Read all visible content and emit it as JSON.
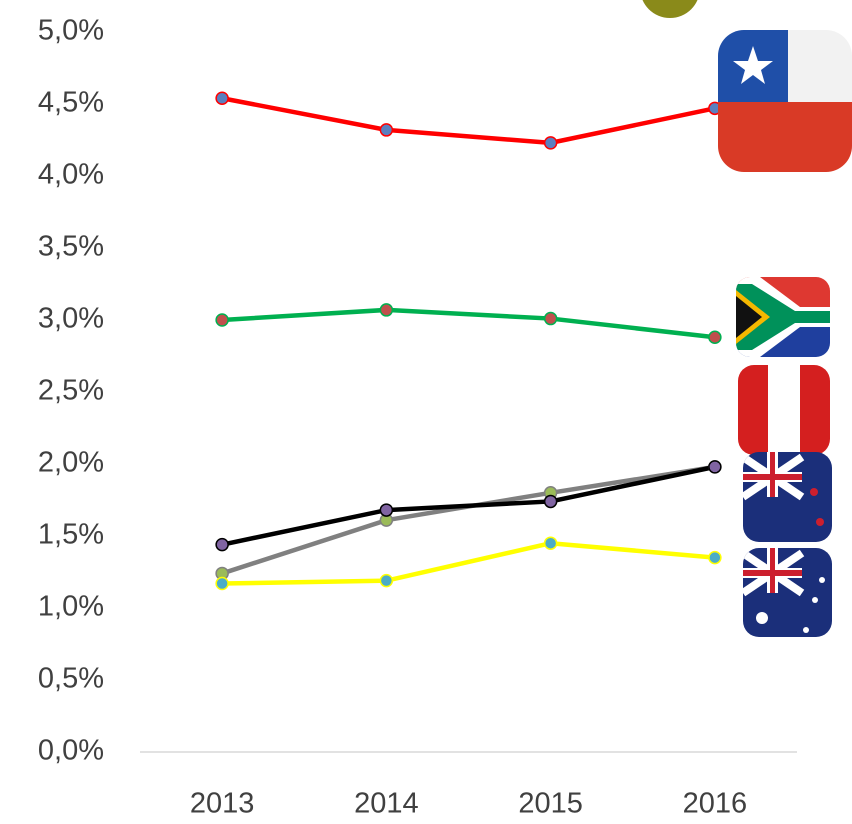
{
  "chart_data": {
    "type": "line",
    "categories": [
      "2013",
      "2014",
      "2015",
      "2016"
    ],
    "series": [
      {
        "color": "#ff0000",
        "marker_color": "#5b7fbf",
        "values": [
          4.54,
          4.32,
          4.23,
          4.47
        ]
      },
      {
        "color": "#00b050",
        "marker_color": "#c0504d",
        "values": [
          3.0,
          3.07,
          3.01,
          2.88
        ]
      },
      {
        "color": "#808080",
        "marker_color": "#9bbb59",
        "values": [
          1.24,
          1.61,
          1.8,
          1.98
        ]
      },
      {
        "color": "#000000",
        "marker_color": "#8064a2",
        "values": [
          1.44,
          1.68,
          1.74,
          1.98
        ]
      },
      {
        "color": "#ffff00",
        "marker_color": "#4bacc6",
        "values": [
          1.17,
          1.19,
          1.45,
          1.35
        ]
      }
    ],
    "ylim": [
      0,
      5
    ],
    "yticks": [
      {
        "value": 0,
        "label": "0,0%"
      },
      {
        "value": 0.5,
        "label": "0,5%"
      },
      {
        "value": 1,
        "label": "1,0%"
      },
      {
        "value": 1.5,
        "label": "1,5%"
      },
      {
        "value": 2,
        "label": "2,0%"
      },
      {
        "value": 2.5,
        "label": "2,5%"
      },
      {
        "value": 3,
        "label": "3,0%"
      },
      {
        "value": 3.5,
        "label": "3,5%"
      },
      {
        "value": 4,
        "label": "4,0%"
      },
      {
        "value": 4.5,
        "label": "4,5%"
      },
      {
        "value": 5,
        "label": "5,0%"
      }
    ],
    "grid": false
  }
}
